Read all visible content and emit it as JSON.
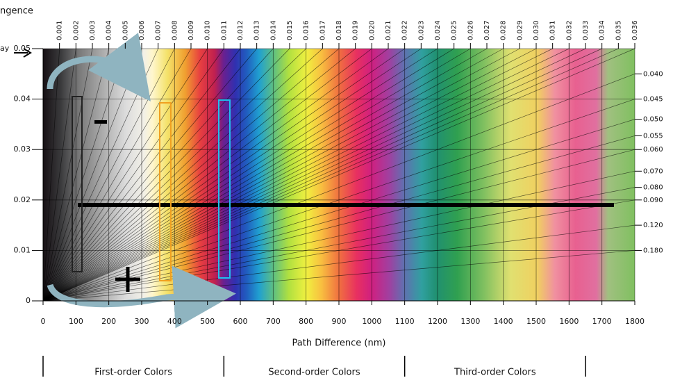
{
  "chart_data": {
    "type": "interference",
    "x_title": "Path Difference (nm)",
    "top_title": "ngence",
    "y_title": "ay",
    "xlim": [
      0,
      1800
    ],
    "xticks": [
      0,
      100,
      200,
      300,
      400,
      500,
      600,
      700,
      800,
      900,
      1000,
      1100,
      1200,
      1300,
      1400,
      1500,
      1600,
      1700,
      1800
    ],
    "ylim": [
      0,
      0.05
    ],
    "yticks": [
      0,
      0.01,
      0.02,
      0.03,
      0.04,
      0.05
    ],
    "birefringence_top": [
      0.001,
      0.002,
      0.003,
      0.004,
      0.005,
      0.006,
      0.007,
      0.008,
      0.009,
      {
        "value": 0.01,
        "label": "0.010"
      },
      0.011,
      0.012,
      0.013,
      0.014,
      0.015,
      0.016,
      0.017,
      0.018,
      0.019,
      {
        "value": 0.02,
        "label": "0.020"
      },
      0.021,
      0.022,
      0.023,
      0.024,
      0.025,
      0.026,
      0.027,
      0.028,
      0.029,
      {
        "value": 0.03,
        "label": "0.030"
      },
      0.031,
      0.032,
      0.033,
      0.034,
      0.035,
      0.036
    ],
    "birefringence_right": [
      {
        "value": 0.04,
        "label": "0.040"
      },
      {
        "value": 0.045,
        "label": "0.045"
      },
      {
        "value": 0.05,
        "label": "0.050"
      },
      {
        "value": 0.055,
        "label": "0.055"
      },
      {
        "value": 0.06,
        "label": "0.060"
      },
      {
        "value": 0.07,
        "label": "0.070"
      },
      {
        "value": 0.08,
        "label": "0.080"
      },
      {
        "value": 0.09,
        "label": "0.090"
      },
      {
        "value": 0.12,
        "label": "0.120"
      },
      {
        "value": 0.18,
        "label": "0.180"
      }
    ],
    "orders": [
      "First-order Colors",
      "Second-order Colors",
      "Third-order Colors"
    ],
    "order_bounds": [
      0,
      550,
      1100,
      1650
    ]
  }
}
